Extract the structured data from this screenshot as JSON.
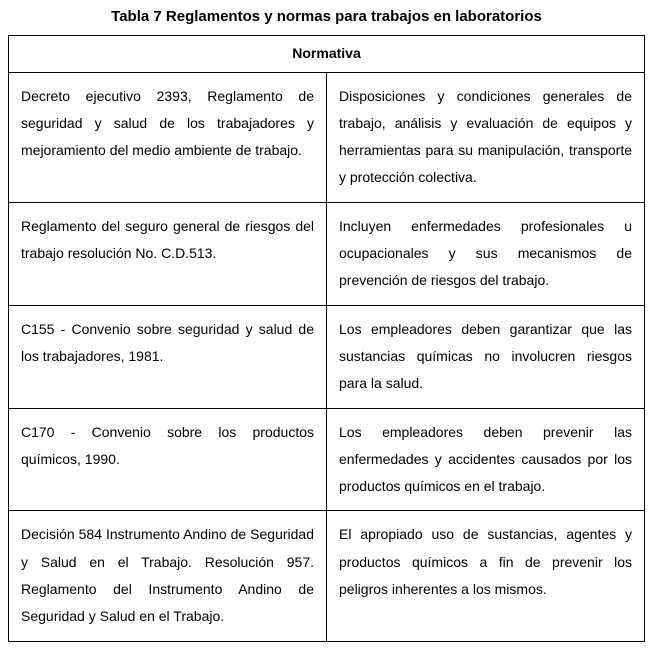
{
  "title": "Tabla 7 Reglamentos y normas para trabajos en laboratorios",
  "header": "Normativa",
  "rows": [
    {
      "left": "Decreto ejecutivo 2393, Reglamento de seguridad y salud de los trabajadores y mejoramiento del medio ambiente de trabajo.",
      "right": "Disposiciones y condiciones generales de trabajo, análisis y evaluación de equipos y herramientas para su manipulación, transporte y protección colectiva."
    },
    {
      "left": "Reglamento del seguro general de riesgos del trabajo resolución No. C.D.513.",
      "right": "Incluyen enfermedades profesionales u ocupacionales y sus mecanismos de prevención de riesgos del trabajo."
    },
    {
      "left": "C155 - Convenio sobre seguridad y salud de los trabajadores, 1981.",
      "right": "Los empleadores deben garantizar que las sustancias químicas no involucren riesgos para la salud."
    },
    {
      "left": "C170 - Convenio sobre los productos químicos, 1990.",
      "right": "Los empleadores deben prevenir las enfermedades y accidentes causados por los productos químicos en el trabajo."
    },
    {
      "left": "Decisión 584 Instrumento Andino de Seguridad y Salud en el Trabajo. Resolución 957. Reglamento del Instrumento Andino de Seguridad y Salud en el Trabajo.",
      "right": "El apropiado uso de sustancias, agentes y productos químicos a fin de prevenir los peligros inherentes a los mismos."
    }
  ]
}
